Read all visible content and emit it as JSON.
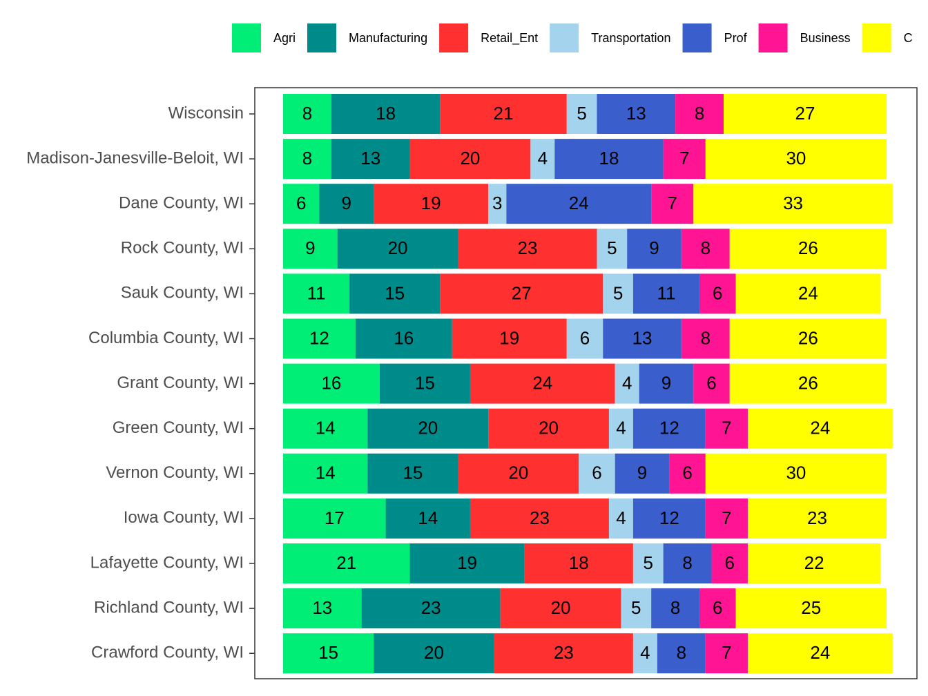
{
  "chart_data": {
    "type": "stacked-bar-horizontal",
    "categories": [
      "Wisconsin",
      "Madison-Janesville-Beloit, WI",
      "Dane County, WI",
      "Rock County, WI",
      "Sauk County, WI",
      "Columbia County, WI",
      "Grant County, WI",
      "Green County, WI",
      "Vernon County, WI",
      "Iowa County, WI",
      "Lafayette County, WI",
      "Richland County, WI",
      "Crawford County, WI"
    ],
    "xlim": [
      0,
      100
    ],
    "legend": "top",
    "series": [
      {
        "name": "Agri",
        "color": "#00EE76",
        "values": [
          8,
          8,
          6,
          9,
          11,
          12,
          16,
          14,
          14,
          17,
          21,
          13,
          15
        ]
      },
      {
        "name": "Manufacturing",
        "color": "#008B8B",
        "values": [
          18,
          13,
          9,
          20,
          15,
          16,
          15,
          20,
          15,
          14,
          19,
          23,
          20
        ]
      },
      {
        "name": "Retail_Ent",
        "color": "#FF3030",
        "values": [
          21,
          20,
          19,
          23,
          27,
          19,
          24,
          20,
          20,
          23,
          18,
          20,
          23
        ]
      },
      {
        "name": "Transportation",
        "color": "#A4D3EE",
        "values": [
          5,
          4,
          3,
          5,
          5,
          6,
          4,
          4,
          6,
          4,
          5,
          5,
          4
        ]
      },
      {
        "name": "Prof",
        "color": "#3A5FCD",
        "values": [
          13,
          18,
          24,
          9,
          11,
          13,
          9,
          12,
          9,
          12,
          8,
          8,
          8
        ]
      },
      {
        "name": "Business",
        "color": "#FF1493",
        "values": [
          8,
          7,
          7,
          8,
          6,
          8,
          6,
          7,
          6,
          7,
          6,
          6,
          7
        ]
      },
      {
        "name": "C",
        "color": "#FFFF00",
        "values": [
          27,
          30,
          33,
          26,
          24,
          26,
          26,
          24,
          30,
          23,
          22,
          25,
          24
        ]
      }
    ]
  }
}
